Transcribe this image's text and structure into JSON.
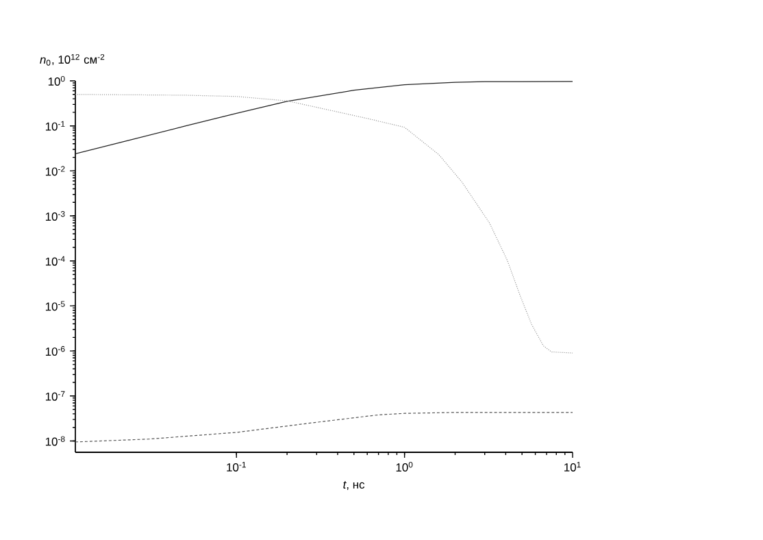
{
  "chart_data": {
    "type": "line",
    "xlabel": "*t*, нс",
    "ylabel": "*n*$_{0}$, 10$^{12}$ см$^{-2}$",
    "log": "xy",
    "grid": false,
    "marker": "none",
    "xlim": [
      0.011,
      10
    ],
    "ylim": [
      5.6e-09,
      1
    ],
    "xticks": [
      {
        "value": 0.1,
        "label": "10$^{-1}$"
      },
      {
        "value": 1,
        "label": "10$^{0}$"
      },
      {
        "value": 10,
        "label": "10$^{1}$"
      }
    ],
    "yticks": [
      {
        "value": 1e-08,
        "label": "10$^{-8}$"
      },
      {
        "value": 1e-07,
        "label": "10$^{-7}$"
      },
      {
        "value": 1e-06,
        "label": "10$^{-6}$"
      },
      {
        "value": 1e-05,
        "label": "10$^{-5}$"
      },
      {
        "value": 0.0001,
        "label": "10$^{-4}$"
      },
      {
        "value": 0.001,
        "label": "10$^{-3}$"
      },
      {
        "value": 0.01,
        "label": "10$^{-2}$"
      },
      {
        "value": 0.1,
        "label": "10$^{-1}$"
      },
      {
        "value": 1,
        "label": "10$^{0}$"
      }
    ],
    "series": [
      {
        "color": "#222222",
        "line_style": "solid",
        "x": [
          0.011,
          0.02,
          0.05,
          0.1,
          0.2,
          0.5,
          1,
          2,
          3,
          10
        ],
        "values": [
          0.024,
          0.042,
          0.1,
          0.19,
          0.35,
          0.62,
          0.82,
          0.93,
          0.96,
          0.97
        ]
      },
      {
        "color": "#999999",
        "line_style": "dotted",
        "x": [
          0.011,
          0.05,
          0.1,
          0.2,
          0.5,
          0.63,
          1,
          1.6,
          2.2,
          3.2,
          4.1,
          4.9,
          5.7,
          6.7,
          7.5,
          10
        ],
        "values": [
          0.5,
          0.48,
          0.45,
          0.36,
          0.17,
          0.14,
          0.093,
          0.023,
          0.0056,
          0.0007,
          0.0001,
          1.6e-05,
          3.9e-06,
          1.3e-06,
          9.5e-07,
          9e-07
        ]
      },
      {
        "color": "#555555",
        "line_style": "dashed",
        "x": [
          0.011,
          0.03,
          0.1,
          0.3,
          0.7,
          1,
          2,
          10
        ],
        "values": [
          9.5e-09,
          1.1e-08,
          1.55e-08,
          2.6e-08,
          3.8e-08,
          4.1e-08,
          4.3e-08,
          4.3e-08
        ]
      }
    ]
  }
}
